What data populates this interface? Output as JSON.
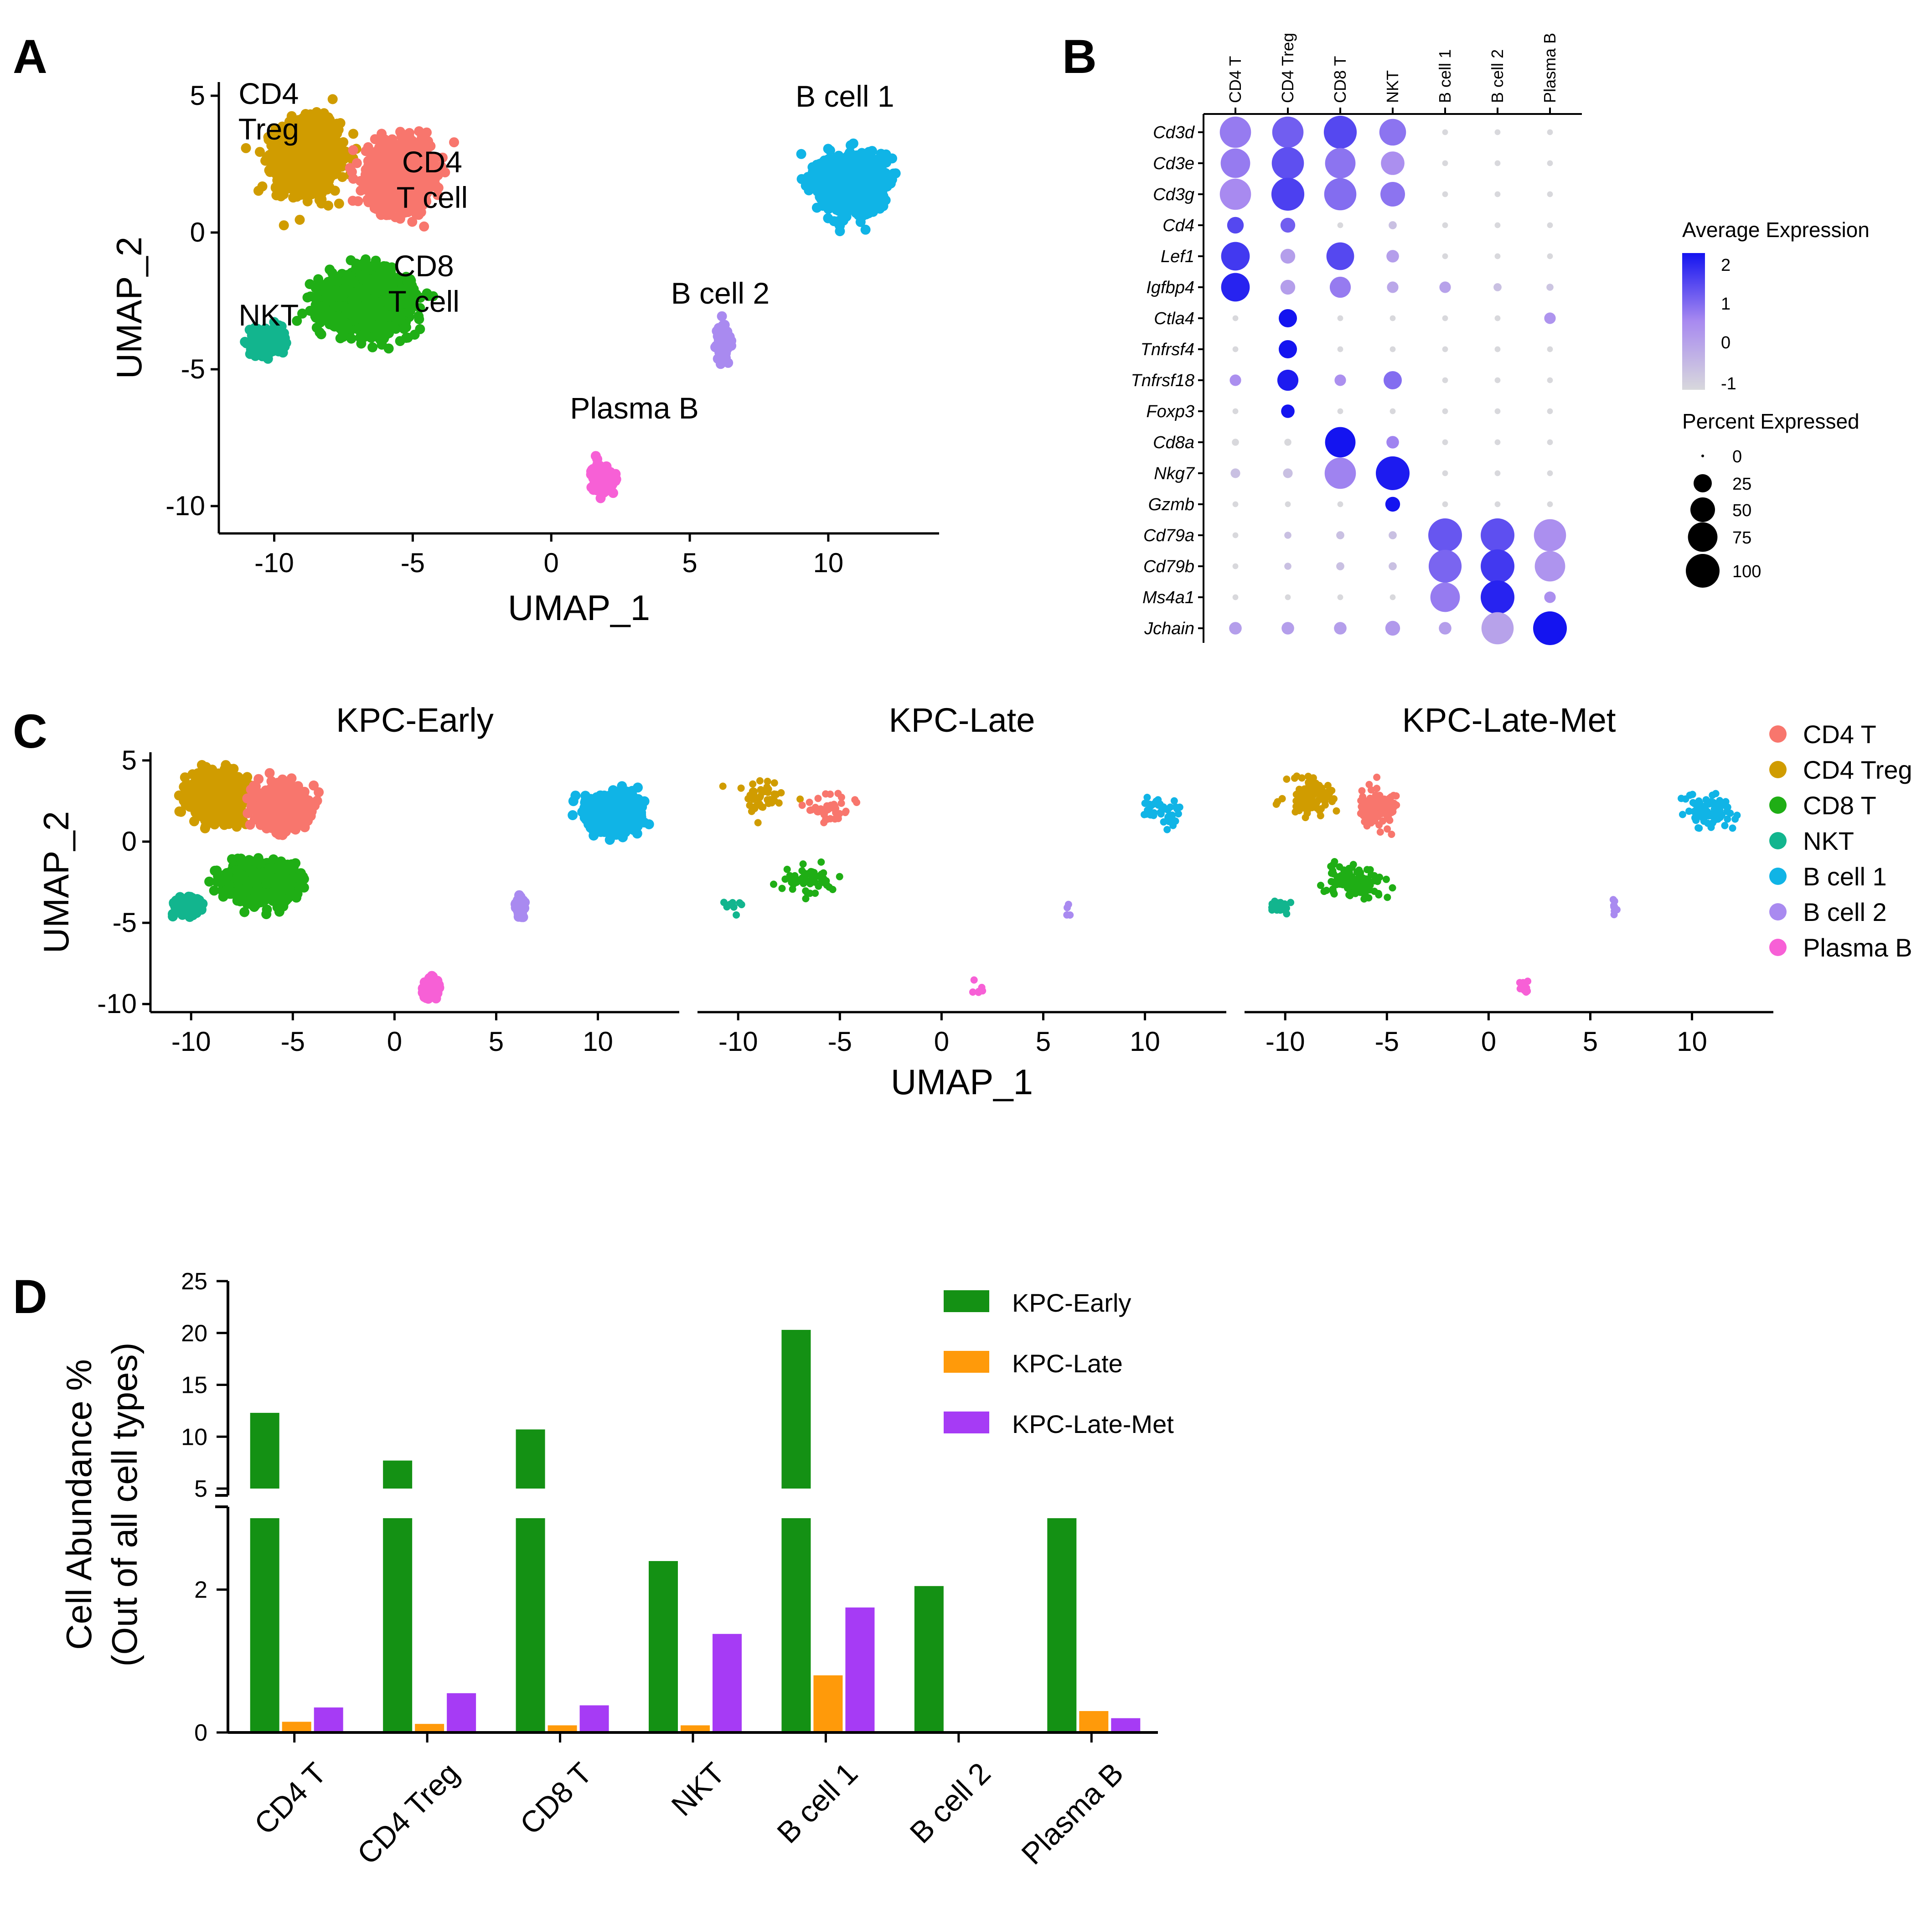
{
  "panel_letters": [
    "A",
    "B",
    "C",
    "D"
  ],
  "colors": {
    "CD4 T": "#F8766D",
    "CD4 Treg": "#D09C00",
    "CD8 T": "#1FAE15",
    "NKT": "#12B58E",
    "B cell 1": "#10B4E6",
    "B cell 2": "#A98AF0",
    "Plasma B": "#F760D6",
    "KPC-Early": "#149114",
    "KPC-Late": "#FF9A0A",
    "KPC-Late-Met": "#A63BF5",
    "dot_low": "#D8D8DC",
    "dot_high": "#1414F0"
  },
  "chart_data": [
    {
      "id": "A",
      "type": "scatter",
      "title": "",
      "xlabel": "UMAP_1",
      "ylabel": "UMAP_2",
      "xlim": [
        -12,
        14
      ],
      "ylim": [
        -11,
        5.5
      ],
      "xticks": [
        -10,
        -5,
        0,
        5,
        10
      ],
      "yticks": [
        5,
        0,
        -5,
        -10
      ],
      "tick_labels_x": [
        "-10",
        "-5",
        "0",
        "5",
        "10"
      ],
      "tick_labels_y": [
        "5",
        "0",
        "-5",
        "-10"
      ],
      "cluster_labels": [
        {
          "text": "CD4",
          "x": -10.2,
          "y": 4.7
        },
        {
          "text": "Treg",
          "x": -10.2,
          "y": 3.4
        },
        {
          "text": "CD4",
          "x": -4.3,
          "y": 2.2
        },
        {
          "text": "T cell",
          "x": -4.3,
          "y": 0.9
        },
        {
          "text": "CD8",
          "x": -4.6,
          "y": -1.6
        },
        {
          "text": "T cell",
          "x": -4.6,
          "y": -2.9
        },
        {
          "text": "NKT",
          "x": -10.2,
          "y": -3.4
        },
        {
          "text": "B cell 1",
          "x": 10.6,
          "y": 4.6
        },
        {
          "text": "B cell 2",
          "x": 6.1,
          "y": -2.6
        },
        {
          "text": "Plasma B",
          "x": 3.0,
          "y": -6.8
        }
      ],
      "clusters": [
        {
          "name": "CD4 Treg",
          "cx": -8.8,
          "cy": 2.8,
          "sx": 1.0,
          "sy": 1.1
        },
        {
          "name": "CD4 T",
          "cx": -5.5,
          "cy": 2.1,
          "sx": 1.0,
          "sy": 1.0
        },
        {
          "name": "CD8 T",
          "cx": -6.6,
          "cy": -2.5,
          "sx": 1.3,
          "sy": 0.9
        },
        {
          "name": "NKT",
          "cx": -10.2,
          "cy": -4.0,
          "sx": 0.5,
          "sy": 0.4
        },
        {
          "name": "B cell 1",
          "cx": 10.8,
          "cy": 1.8,
          "sx": 1.0,
          "sy": 0.9
        },
        {
          "name": "B cell 2",
          "cx": 6.2,
          "cy": -4.1,
          "sx": 0.17,
          "sy": 0.5
        },
        {
          "name": "Plasma B",
          "cx": 1.8,
          "cy": -9.0,
          "sx": 0.3,
          "sy": 0.45
        }
      ]
    },
    {
      "id": "B",
      "type": "dotplot",
      "columns": [
        "CD4 T",
        "CD4 Treg",
        "CD8 T",
        "NKT",
        "B cell 1",
        "B cell 2",
        "Plasma B"
      ],
      "genes": [
        "Cd3d",
        "Cd3e",
        "Cd3g",
        "Cd4",
        "Lef1",
        "Igfbp4",
        "Ctla4",
        "Tnfrsf4",
        "Tnfrsf18",
        "Foxp3",
        "Cd8a",
        "Nkg7",
        "Gzmb",
        "Cd79a",
        "Cd79b",
        "Ms4a1",
        "Jchain"
      ],
      "pct": [
        [
          85,
          85,
          95,
          60,
          1,
          1,
          1
        ],
        [
          75,
          90,
          80,
          45,
          1,
          1,
          1
        ],
        [
          85,
          95,
          90,
          50,
          1,
          1,
          1
        ],
        [
          20,
          15,
          1,
          3,
          1,
          1,
          1
        ],
        [
          70,
          15,
          65,
          10,
          1,
          1,
          1
        ],
        [
          70,
          15,
          35,
          8,
          8,
          3,
          2
        ],
        [
          1,
          25,
          1,
          1,
          1,
          1,
          8
        ],
        [
          1,
          25,
          1,
          1,
          1,
          1,
          1
        ],
        [
          8,
          35,
          8,
          25,
          1,
          1,
          1
        ],
        [
          1,
          12,
          1,
          1,
          1,
          1,
          1
        ],
        [
          2,
          2,
          80,
          10,
          1,
          1,
          1
        ],
        [
          5,
          5,
          85,
          100,
          1,
          1,
          1
        ],
        [
          1,
          1,
          1,
          15,
          1,
          1,
          1
        ],
        [
          1,
          2,
          3,
          3,
          100,
          100,
          90
        ],
        [
          1,
          2,
          3,
          3,
          95,
          100,
          80
        ],
        [
          1,
          1,
          1,
          1,
          75,
          100,
          8
        ],
        [
          10,
          10,
          10,
          15,
          10,
          90,
          100
        ]
      ],
      "avg": [
        [
          0.8,
          1.2,
          1.5,
          0.9,
          -1,
          -1,
          -1
        ],
        [
          0.8,
          1.4,
          0.9,
          0.5,
          -1,
          -1,
          -1
        ],
        [
          0.6,
          1.6,
          1.0,
          0.9,
          -1,
          -1,
          -1
        ],
        [
          1.5,
          1.2,
          -1,
          -0.5,
          -1,
          -1,
          -1
        ],
        [
          1.7,
          0.2,
          1.5,
          0.2,
          -1,
          -1,
          -1
        ],
        [
          2.0,
          0.2,
          0.8,
          0.0,
          0.1,
          -0.5,
          -0.6
        ],
        [
          -1,
          2.2,
          -1,
          -1,
          -1,
          -1,
          0.4
        ],
        [
          -1,
          2.2,
          -1,
          -1,
          -1,
          -1,
          -1
        ],
        [
          0.5,
          2.1,
          0.5,
          1.0,
          -1,
          -1,
          -1
        ],
        [
          -1,
          2.3,
          -1,
          -1,
          -1,
          -1,
          -1
        ],
        [
          -1,
          -1,
          2.2,
          0.7,
          -1,
          -1,
          -1
        ],
        [
          -0.5,
          -0.5,
          0.7,
          2.1,
          -1,
          -1,
          -1
        ],
        [
          -1,
          -1,
          -1,
          2.2,
          -1,
          -1,
          -1
        ],
        [
          -1,
          -0.5,
          -0.5,
          -0.5,
          1.3,
          1.4,
          0.5
        ],
        [
          -1,
          -0.5,
          -0.5,
          -0.5,
          1.1,
          1.7,
          0.4
        ],
        [
          -1,
          -1,
          -1,
          -1,
          0.8,
          2.0,
          0.5
        ],
        [
          0.2,
          0.2,
          0.2,
          0.3,
          0.2,
          0.1,
          2.2
        ]
      ],
      "color_legend": {
        "title": "Average Expression",
        "ticks": [
          "2",
          "1",
          "0",
          "-1"
        ],
        "range": [
          -1,
          2.2
        ]
      },
      "size_legend": {
        "title": "Percent Expressed",
        "ticks": [
          "0",
          "25",
          "50",
          "75",
          "100"
        ]
      }
    },
    {
      "id": "C",
      "type": "scatter",
      "xlabel": "UMAP_1",
      "ylabel": "UMAP_2",
      "xlim": [
        -12,
        14
      ],
      "ylim": [
        -10.5,
        5.5
      ],
      "xticks": [
        -10,
        -5,
        0,
        5,
        10
      ],
      "yticks": [
        5,
        0,
        -5,
        -10
      ],
      "tick_labels_x": [
        "-10",
        "-5",
        "0",
        "5",
        "10"
      ],
      "tick_labels_y": [
        "5",
        "0",
        "-5",
        "-10"
      ],
      "panels": [
        {
          "title": "KPC-Early",
          "density": 1.0
        },
        {
          "title": "KPC-Late",
          "density": 0.03
        },
        {
          "title": "KPC-Late-Met",
          "density": 0.07
        }
      ],
      "legend": [
        "CD4 T",
        "CD4 Treg",
        "CD8 T",
        "NKT",
        "B cell 1",
        "B cell 2",
        "Plasma B"
      ]
    },
    {
      "id": "D",
      "type": "bar",
      "ylabel_line1": "Cell Abundance %",
      "ylabel_line2": "(Out of all cell types)",
      "categories": [
        "CD4 T",
        "CD4 Treg",
        "CD8 T",
        "NKT",
        "B cell 1",
        "B cell 2",
        "Plasma B"
      ],
      "series": [
        {
          "name": "KPC-Early",
          "values": [
            12.3,
            7.7,
            10.7,
            2.4,
            20.3,
            2.05,
            3.0
          ]
        },
        {
          "name": "KPC-Late",
          "values": [
            0.15,
            0.12,
            0.1,
            0.1,
            0.8,
            0.0,
            0.3
          ]
        },
        {
          "name": "KPC-Late-Met",
          "values": [
            0.35,
            0.55,
            0.38,
            1.38,
            1.75,
            0.0,
            0.2
          ]
        }
      ],
      "broken_axis": {
        "lower": [
          0,
          3
        ],
        "upper": [
          5,
          25
        ]
      },
      "yticks_lower": [
        "0",
        "2"
      ],
      "yticks_upper": [
        "5",
        "10",
        "15",
        "20",
        "25"
      ]
    }
  ]
}
